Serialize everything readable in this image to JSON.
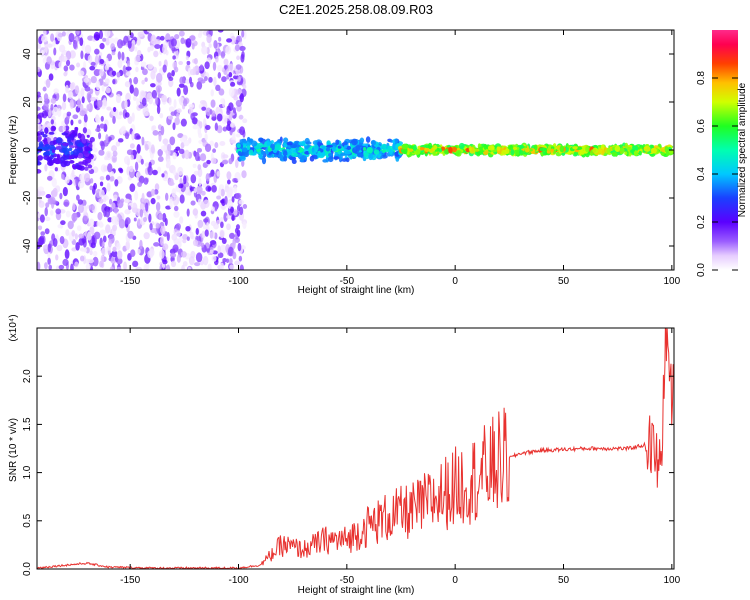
{
  "title": "C2E1.2025.258.08.09.R03",
  "chart_data": [
    {
      "type": "heatmap",
      "xlabel": "Height of straight line (km)",
      "ylabel": "Frequency (Hz)",
      "xlim": [
        -193,
        101
      ],
      "ylim": [
        -50,
        50
      ],
      "xticks": [
        -150,
        -100,
        -50,
        0,
        50,
        100
      ],
      "yticks": [
        -40,
        -20,
        0,
        20,
        40
      ],
      "colorbar": {
        "label": "Normalized spectral amplitude",
        "range": [
          0,
          1
        ],
        "ticks": [
          "0.0",
          "0.2",
          "0.4",
          "0.6",
          "0.8"
        ],
        "colormap": "rainbow (white→purple→blue→cyan→green→yellow→orange→red→pink)"
      },
      "regions": [
        {
          "x": [
            -193,
            -97
          ],
          "frequency_spread": [
            -50,
            50
          ],
          "amplitude": [
            0.02,
            0.2
          ],
          "description_level": "noise"
        },
        {
          "x": [
            -193,
            -168
          ],
          "frequency_band": [
            -10,
            10
          ],
          "amplitude": [
            0.15,
            0.35
          ]
        },
        {
          "x": [
            -100,
            -25
          ],
          "frequency_band": [
            -5,
            5
          ],
          "amplitude": [
            0.3,
            0.55
          ]
        },
        {
          "x": [
            -25,
            100
          ],
          "frequency_band": [
            -2,
            2
          ],
          "amplitude": [
            0.55,
            0.9
          ]
        }
      ]
    },
    {
      "type": "line",
      "xlabel": "Height of straight line (km)",
      "ylabel": "SNR (10 * v/v)",
      "y_multiplier": "(x10⁴)",
      "xlim": [
        -193,
        101
      ],
      "ylim": [
        0,
        2.5
      ],
      "xticks": [
        -150,
        -100,
        -50,
        0,
        50,
        100
      ],
      "yticks": [
        "0.0",
        "0.5",
        "1.0",
        "1.5",
        "2.0"
      ],
      "color": "#e8322f",
      "series": [
        {
          "x": [
            -193,
            -180,
            -170,
            -160,
            -140,
            -120,
            -100,
            -90,
            -80,
            -70,
            -60,
            -50,
            -40,
            -30,
            -20,
            -10,
            0,
            10,
            20,
            30,
            40,
            50,
            60,
            70,
            80,
            90,
            95,
            97,
            100
          ],
          "y": [
            0.01,
            0.04,
            0.06,
            0.02,
            0.01,
            0.01,
            0.01,
            0.04,
            0.25,
            0.2,
            0.3,
            0.3,
            0.45,
            0.55,
            0.6,
            0.72,
            0.85,
            0.95,
            1.1,
            1.2,
            1.23,
            1.24,
            1.25,
            1.25,
            1.25,
            1.3,
            1.0,
            2.5,
            1.8
          ]
        }
      ]
    }
  ]
}
